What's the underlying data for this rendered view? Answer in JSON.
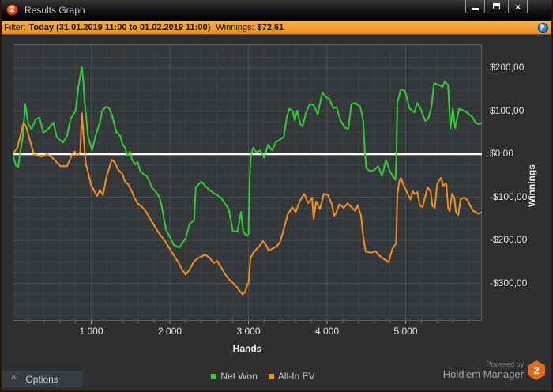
{
  "window": {
    "title": "Results Graph",
    "icon_text": "2",
    "buttons": {
      "close_glyph": "×"
    }
  },
  "filter_bar": {
    "label": "Filter:",
    "value": "Today (31.01.2019 11:00 to 01.02.2019 11:00)",
    "winnings_label": "Winnings:",
    "winnings_value": "$72,61",
    "help_glyph": "?"
  },
  "colors": {
    "net_won": "#33cc33",
    "all_in_ev": "#f0921e",
    "zero_line": "#ffffff",
    "plot_bg": "#35383b",
    "grid_minor": "#3f4245",
    "grid_major": "#4b4f52",
    "plot_border": "#5a5d60",
    "filter_bar": "#ee9c2a",
    "brand_orange": "#e06a1d"
  },
  "chart_data": {
    "type": "line",
    "title": "Results Graph",
    "xlabel": "Hands",
    "ylabel": "Winnings",
    "x_range": [
      0,
      5970
    ],
    "y_range": [
      -387,
      255
    ],
    "grid": {
      "x_minor": 200,
      "x_major": 1000,
      "y_minor": 25,
      "y_major": 100,
      "visible": true
    },
    "zero_line": 0,
    "legend_position": "bottom-center",
    "x_ticks": [
      {
        "label": "1 000",
        "value": 1000
      },
      {
        "label": "2 000",
        "value": 2000
      },
      {
        "label": "3 000",
        "value": 3000
      },
      {
        "label": "4 000",
        "value": 4000
      },
      {
        "label": "5 000",
        "value": 5000
      }
    ],
    "y_ticks": [
      {
        "label": "$200,00",
        "value": 200
      },
      {
        "label": "$100,00",
        "value": 100
      },
      {
        "label": "$0,00",
        "value": 0
      },
      {
        "label": "-$100,00",
        "value": -100
      },
      {
        "label": "-$200,00",
        "value": -200
      },
      {
        "label": "-$300,00",
        "value": -300
      }
    ],
    "legend": [
      {
        "label": "Net Won",
        "color": "#33cc33"
      },
      {
        "label": "All-In EV",
        "color": "#f0921e"
      }
    ],
    "series": [
      {
        "name": "Net Won",
        "color": "#33cc33",
        "points": [
          [
            0,
            0
          ],
          [
            40,
            -25
          ],
          [
            70,
            -30
          ],
          [
            100,
            8
          ],
          [
            130,
            40
          ],
          [
            160,
            116
          ],
          [
            200,
            70
          ],
          [
            240,
            58
          ],
          [
            290,
            80
          ],
          [
            340,
            85
          ],
          [
            390,
            50
          ],
          [
            440,
            56
          ],
          [
            520,
            73
          ],
          [
            560,
            40
          ],
          [
            640,
            27
          ],
          [
            690,
            42
          ],
          [
            740,
            83
          ],
          [
            800,
            100
          ],
          [
            840,
            160
          ],
          [
            880,
            202
          ],
          [
            900,
            168
          ],
          [
            915,
            125
          ],
          [
            960,
            40
          ],
          [
            1010,
            9
          ],
          [
            1060,
            46
          ],
          [
            1110,
            73
          ],
          [
            1140,
            101
          ],
          [
            1190,
            110
          ],
          [
            1230,
            106
          ],
          [
            1270,
            86
          ],
          [
            1320,
            51
          ],
          [
            1370,
            42
          ],
          [
            1400,
            22
          ],
          [
            1430,
            15
          ],
          [
            1460,
            -4
          ],
          [
            1490,
            6
          ],
          [
            1520,
            -13
          ],
          [
            1560,
            -24
          ],
          [
            1590,
            -18
          ],
          [
            1620,
            -37
          ],
          [
            1660,
            -46
          ],
          [
            1700,
            -50
          ],
          [
            1730,
            -59
          ],
          [
            1770,
            -77
          ],
          [
            1800,
            -83
          ],
          [
            1840,
            -92
          ],
          [
            1870,
            -101
          ],
          [
            1890,
            -116
          ],
          [
            1950,
            -174
          ],
          [
            2050,
            -211
          ],
          [
            2120,
            -217
          ],
          [
            2200,
            -196
          ],
          [
            2250,
            -162
          ],
          [
            2300,
            -155
          ],
          [
            2310,
            -150
          ],
          [
            2330,
            -77
          ],
          [
            2400,
            -64
          ],
          [
            2500,
            -83
          ],
          [
            2650,
            -101
          ],
          [
            2750,
            -128
          ],
          [
            2800,
            -178
          ],
          [
            2860,
            -180
          ],
          [
            2905,
            -134
          ],
          [
            2935,
            -180
          ],
          [
            2975,
            -190
          ],
          [
            3000,
            -185
          ],
          [
            3015,
            -60
          ],
          [
            3030,
            -5
          ],
          [
            3060,
            15
          ],
          [
            3100,
            4
          ],
          [
            3150,
            9
          ],
          [
            3200,
            -9
          ],
          [
            3250,
            22
          ],
          [
            3300,
            9
          ],
          [
            3350,
            28
          ],
          [
            3450,
            40
          ],
          [
            3490,
            88
          ],
          [
            3520,
            105
          ],
          [
            3560,
            101
          ],
          [
            3590,
            79
          ],
          [
            3620,
            101
          ],
          [
            3660,
            70
          ],
          [
            3690,
            64
          ],
          [
            3730,
            95
          ],
          [
            3780,
            116
          ],
          [
            3830,
            114
          ],
          [
            3880,
            92
          ],
          [
            3940,
            143
          ],
          [
            3990,
            132
          ],
          [
            4030,
            128
          ],
          [
            4080,
            106
          ],
          [
            4120,
            110
          ],
          [
            4170,
            79
          ],
          [
            4230,
            61
          ],
          [
            4270,
            59
          ],
          [
            4310,
            116
          ],
          [
            4360,
            119
          ],
          [
            4420,
            110
          ],
          [
            4440,
            95
          ],
          [
            4460,
            77
          ],
          [
            4480,
            9
          ],
          [
            4500,
            -33
          ],
          [
            4550,
            -40
          ],
          [
            4600,
            -37
          ],
          [
            4650,
            -28
          ],
          [
            4700,
            -51
          ],
          [
            4750,
            -13
          ],
          [
            4800,
            -40
          ],
          [
            4850,
            -55
          ],
          [
            4870,
            -59
          ],
          [
            4882,
            -15
          ],
          [
            4895,
            120
          ],
          [
            4940,
            150
          ],
          [
            4990,
            147
          ],
          [
            5050,
            106
          ],
          [
            5110,
            97
          ],
          [
            5150,
            119
          ],
          [
            5200,
            101
          ],
          [
            5250,
            77
          ],
          [
            5290,
            83
          ],
          [
            5330,
            110
          ],
          [
            5360,
            165
          ],
          [
            5430,
            160
          ],
          [
            5470,
            156
          ],
          [
            5500,
            169
          ],
          [
            5540,
            160
          ],
          [
            5570,
            59
          ],
          [
            5600,
            106
          ],
          [
            5630,
            61
          ],
          [
            5680,
            105
          ],
          [
            5740,
            101
          ],
          [
            5790,
            95
          ],
          [
            5850,
            86
          ],
          [
            5890,
            73
          ],
          [
            5930,
            70
          ],
          [
            5970,
            72.61
          ]
        ]
      },
      {
        "name": "All-In EV",
        "color": "#f0921e",
        "points": [
          [
            0,
            0
          ],
          [
            60,
            15
          ],
          [
            140,
            73
          ],
          [
            170,
            64
          ],
          [
            270,
            0
          ],
          [
            370,
            -6
          ],
          [
            440,
            0
          ],
          [
            510,
            -9
          ],
          [
            610,
            -28
          ],
          [
            690,
            -28
          ],
          [
            760,
            0
          ],
          [
            790,
            6
          ],
          [
            820,
            -4
          ],
          [
            860,
            4
          ],
          [
            880,
            95
          ],
          [
            915,
            13
          ],
          [
            930,
            -22
          ],
          [
            945,
            -31
          ],
          [
            995,
            -70
          ],
          [
            1045,
            -88
          ],
          [
            1075,
            -97
          ],
          [
            1110,
            -83
          ],
          [
            1150,
            -95
          ],
          [
            1196,
            -51
          ],
          [
            1246,
            -22
          ],
          [
            1260,
            -13
          ],
          [
            1296,
            -18
          ],
          [
            1347,
            -37
          ],
          [
            1397,
            -46
          ],
          [
            1430,
            -64
          ],
          [
            1470,
            -70
          ],
          [
            1497,
            -79
          ],
          [
            1530,
            -92
          ],
          [
            1548,
            -101
          ],
          [
            1598,
            -116
          ],
          [
            1648,
            -123
          ],
          [
            1699,
            -134
          ],
          [
            1749,
            -150
          ],
          [
            1849,
            -180
          ],
          [
            1950,
            -205
          ],
          [
            2050,
            -235
          ],
          [
            2120,
            -255
          ],
          [
            2151,
            -266
          ],
          [
            2201,
            -280
          ],
          [
            2250,
            -268
          ],
          [
            2302,
            -251
          ],
          [
            2350,
            -242
          ],
          [
            2402,
            -238
          ],
          [
            2450,
            -233
          ],
          [
            2503,
            -240
          ],
          [
            2560,
            -253
          ],
          [
            2603,
            -248
          ],
          [
            2650,
            -262
          ],
          [
            2704,
            -279
          ],
          [
            2750,
            -290
          ],
          [
            2804,
            -299
          ],
          [
            2850,
            -308
          ],
          [
            2884,
            -317
          ],
          [
            2925,
            -325
          ],
          [
            2955,
            -321
          ],
          [
            2985,
            -303
          ],
          [
            3000,
            -300
          ],
          [
            3025,
            -242
          ],
          [
            3060,
            -229
          ],
          [
            3106,
            -220
          ],
          [
            3150,
            -211
          ],
          [
            3186,
            -202
          ],
          [
            3220,
            -210
          ],
          [
            3256,
            -224
          ],
          [
            3300,
            -220
          ],
          [
            3357,
            -214
          ],
          [
            3400,
            -205
          ],
          [
            3457,
            -169
          ],
          [
            3500,
            -140
          ],
          [
            3558,
            -123
          ],
          [
            3600,
            -135
          ],
          [
            3650,
            -110
          ],
          [
            3709,
            -92
          ],
          [
            3760,
            -114
          ],
          [
            3809,
            -101
          ],
          [
            3830,
            -150
          ],
          [
            3860,
            -110
          ],
          [
            3910,
            -128
          ],
          [
            3960,
            -92
          ],
          [
            4010,
            -95
          ],
          [
            4060,
            -116
          ],
          [
            4090,
            -143
          ],
          [
            4111,
            -138
          ],
          [
            4160,
            -116
          ],
          [
            4211,
            -125
          ],
          [
            4260,
            -114
          ],
          [
            4311,
            -123
          ],
          [
            4360,
            -132
          ],
          [
            4390,
            -119
          ],
          [
            4432,
            -143
          ],
          [
            4460,
            -193
          ],
          [
            4492,
            -226
          ],
          [
            4560,
            -229
          ],
          [
            4613,
            -225
          ],
          [
            4660,
            -235
          ],
          [
            4714,
            -242
          ],
          [
            4784,
            -251
          ],
          [
            4830,
            -220
          ],
          [
            4864,
            -211
          ],
          [
            4880,
            -207
          ],
          [
            4895,
            -92
          ],
          [
            4920,
            -64
          ],
          [
            4940,
            -55
          ],
          [
            4970,
            -70
          ],
          [
            5015,
            -88
          ],
          [
            5060,
            -105
          ],
          [
            5090,
            -86
          ],
          [
            5116,
            -92
          ],
          [
            5150,
            -88
          ],
          [
            5180,
            -119
          ],
          [
            5216,
            -123
          ],
          [
            5250,
            -97
          ],
          [
            5280,
            -77
          ],
          [
            5317,
            -86
          ],
          [
            5340,
            -119
          ],
          [
            5370,
            -125
          ],
          [
            5400,
            -70
          ],
          [
            5430,
            -60
          ],
          [
            5450,
            -55
          ],
          [
            5480,
            -73
          ],
          [
            5518,
            -68
          ],
          [
            5540,
            -125
          ],
          [
            5560,
            -132
          ],
          [
            5590,
            -92
          ],
          [
            5618,
            -101
          ],
          [
            5640,
            -134
          ],
          [
            5670,
            -141
          ],
          [
            5700,
            -105
          ],
          [
            5740,
            -101
          ],
          [
            5790,
            -107
          ],
          [
            5819,
            -119
          ],
          [
            5860,
            -132
          ],
          [
            5890,
            -134
          ],
          [
            5920,
            -138
          ],
          [
            5970,
            -135
          ]
        ]
      }
    ]
  },
  "footer": {
    "options_label": "Options",
    "options_chevron": "^",
    "powered_by": "Powered by",
    "brand": "Hold'em Manager",
    "brand_badge": "2"
  }
}
